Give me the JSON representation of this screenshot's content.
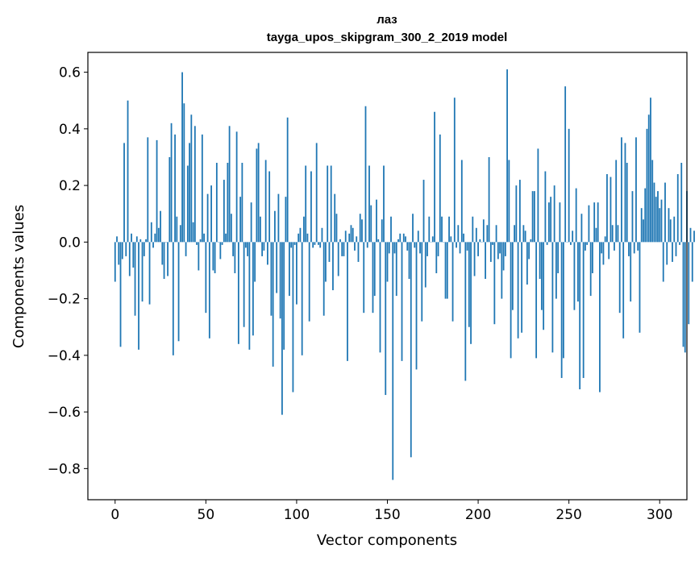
{
  "chart_data": {
    "type": "bar",
    "title": "лаз",
    "subtitle": "tayga_upos_skipgram_300_2_2019 model",
    "xlabel": "Vector components",
    "ylabel": "Components values",
    "xlim": [
      -15,
      315
    ],
    "ylim": [
      -0.91,
      0.67
    ],
    "xticks": [
      0,
      50,
      100,
      150,
      200,
      250,
      300
    ],
    "xtick_labels": [
      "0",
      "50",
      "100",
      "150",
      "200",
      "250",
      "300"
    ],
    "yticks": [
      -0.8,
      -0.6,
      -0.4,
      -0.2,
      0.0,
      0.2,
      0.4,
      0.6
    ],
    "ytick_labels": [
      "−0.8",
      "−0.6",
      "−0.4",
      "−0.2",
      "0.0",
      "0.2",
      "0.4",
      "0.6"
    ],
    "bar_color": "#1f77b4",
    "grid": false,
    "legend": "none",
    "values": [
      -0.14,
      0.02,
      -0.08,
      -0.37,
      -0.06,
      0.35,
      -0.05,
      0.5,
      -0.12,
      0.03,
      -0.09,
      -0.26,
      0.02,
      -0.38,
      0.01,
      -0.21,
      -0.05,
      0.01,
      0.37,
      -0.22,
      0.07,
      -0.02,
      0.03,
      0.36,
      0.05,
      0.11,
      -0.08,
      -0.13,
      0.0,
      -0.12,
      0.3,
      0.42,
      -0.4,
      0.38,
      0.09,
      -0.35,
      0.06,
      0.6,
      0.49,
      -0.05,
      0.27,
      0.35,
      0.45,
      0.07,
      0.41,
      -0.01,
      -0.1,
      0.01,
      0.38,
      0.03,
      -0.25,
      0.17,
      -0.34,
      0.2,
      -0.1,
      -0.11,
      0.28,
      0.0,
      -0.06,
      -0.01,
      0.22,
      0.03,
      0.28,
      0.41,
      0.1,
      -0.05,
      -0.11,
      0.39,
      -0.36,
      0.16,
      0.28,
      -0.3,
      -0.02,
      -0.05,
      -0.38,
      0.14,
      -0.33,
      -0.14,
      0.33,
      0.35,
      0.09,
      -0.05,
      -0.03,
      0.29,
      -0.08,
      0.25,
      -0.26,
      -0.44,
      0.11,
      -0.18,
      0.17,
      -0.27,
      -0.61,
      -0.38,
      0.16,
      0.44,
      -0.19,
      -0.02,
      -0.53,
      -0.01,
      -0.22,
      0.03,
      0.05,
      -0.4,
      0.09,
      0.27,
      0.03,
      -0.28,
      0.25,
      -0.02,
      -0.01,
      0.35,
      -0.01,
      -0.02,
      0.05,
      -0.26,
      -0.14,
      0.27,
      -0.07,
      0.27,
      -0.17,
      0.17,
      0.1,
      -0.12,
      0.01,
      -0.05,
      -0.05,
      0.04,
      -0.42,
      0.03,
      0.06,
      0.05,
      -0.03,
      0.02,
      -0.07,
      0.1,
      0.08,
      -0.25,
      0.48,
      -0.02,
      0.27,
      0.13,
      -0.25,
      -0.19,
      0.15,
      0.01,
      -0.39,
      0.08,
      0.27,
      -0.54,
      -0.14,
      -0.04,
      0.09,
      -0.84,
      -0.04,
      -0.19,
      0.01,
      0.03,
      -0.42,
      0.03,
      0.02,
      -0.03,
      -0.13,
      -0.76,
      0.1,
      -0.02,
      -0.45,
      0.04,
      -0.04,
      -0.28,
      0.22,
      -0.16,
      -0.05,
      0.09,
      0.0,
      0.02,
      0.46,
      -0.11,
      -0.05,
      0.38,
      0.09,
      0.0,
      -0.2,
      -0.2,
      0.09,
      0.02,
      -0.28,
      0.51,
      -0.02,
      0.06,
      -0.04,
      0.29,
      0.03,
      -0.49,
      -0.03,
      -0.3,
      -0.36,
      0.09,
      -0.12,
      0.05,
      -0.05,
      0.01,
      0.0,
      0.08,
      -0.13,
      0.06,
      0.3,
      -0.07,
      -0.01,
      -0.29,
      0.06,
      -0.06,
      -0.04,
      -0.2,
      -0.1,
      -0.05,
      0.61,
      0.29,
      -0.41,
      -0.24,
      0.06,
      0.2,
      -0.34,
      0.22,
      -0.32,
      0.06,
      0.04,
      -0.15,
      -0.06,
      0.01,
      0.18,
      0.18,
      -0.41,
      0.33,
      -0.13,
      -0.24,
      -0.31,
      0.25,
      -0.01,
      0.14,
      0.16,
      -0.39,
      0.2,
      -0.2,
      -0.11,
      0.14,
      -0.48,
      -0.41,
      0.55,
      0.0,
      0.4,
      -0.01,
      0.04,
      -0.24,
      0.19,
      -0.21,
      -0.52,
      0.1,
      -0.48,
      -0.03,
      -0.01,
      0.13,
      -0.19,
      -0.11,
      0.14,
      0.05,
      0.14,
      -0.53,
      -0.04,
      -0.08,
      0.02,
      0.24,
      -0.06,
      0.23,
      0.06,
      -0.03,
      0.29,
      0.06,
      -0.25,
      0.37,
      -0.34,
      0.35,
      0.28,
      -0.05,
      -0.21,
      0.18,
      -0.04,
      0.37,
      -0.03,
      -0.32,
      0.12,
      0.08,
      0.19,
      0.4,
      0.45,
      0.51,
      0.29,
      0.21,
      0.16,
      0.18,
      0.12,
      0.15,
      -0.14,
      0.21,
      -0.08,
      0.12,
      0.08,
      -0.07,
      0.09,
      -0.05,
      0.24,
      -0.01,
      0.28,
      -0.37,
      -0.39,
      0.18,
      -0.29,
      0.05,
      -0.14,
      0.04
    ]
  }
}
